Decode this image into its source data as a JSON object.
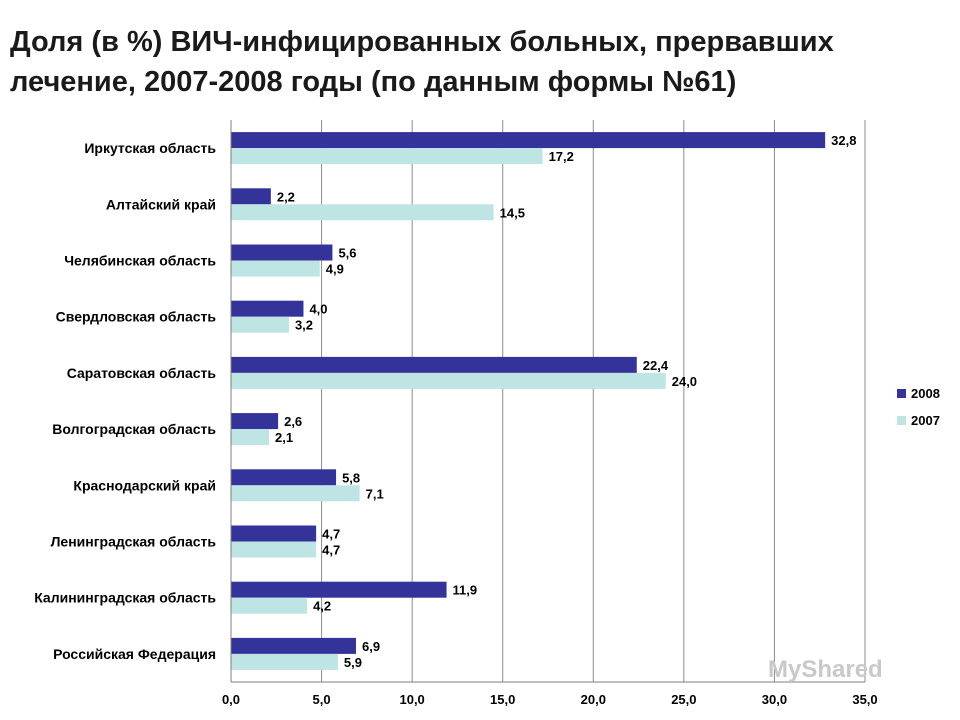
{
  "title": {
    "line1": "Доля (в %) ВИЧ-инфицированных больных, прервавших",
    "line2": "лечение, 2007-2008 годы (по данным формы №61)"
  },
  "watermark": "MyShared",
  "chart_data": {
    "type": "bar",
    "orientation": "horizontal",
    "title": "Доля (в %) ВИЧ-инфицированных больных, прервавших лечение, 2007-2008 годы (по данным формы №61)",
    "categories": [
      "Иркутская область",
      "Алтайский край",
      "Челябинская область",
      "Свердловская область",
      "Саратовская область",
      "Волгоградская область",
      "Краснодарский край",
      "Ленинградская область",
      "Калининградская область",
      "Российская Федерация"
    ],
    "series": [
      {
        "name": "2008",
        "color": "#333399",
        "values": [
          32.8,
          2.2,
          5.6,
          4.0,
          22.4,
          2.6,
          5.8,
          4.7,
          11.9,
          6.9
        ],
        "labels": [
          "32,8",
          "2,2",
          "5,6",
          "4,0",
          "22,4",
          "2,6",
          "5,8",
          "4,7",
          "11,9",
          "6,9"
        ]
      },
      {
        "name": "2007",
        "color": "#bfe4e4",
        "values": [
          17.2,
          14.5,
          4.9,
          3.2,
          24.0,
          2.1,
          7.1,
          4.7,
          4.2,
          5.9
        ],
        "labels": [
          "17,2",
          "14,5",
          "4,9",
          "3,2",
          "24,0",
          "2,1",
          "7,1",
          "4,7",
          "4,2",
          "5,9"
        ]
      }
    ],
    "xlim": [
      0,
      35
    ],
    "xticks": [
      "0,0",
      "5,0",
      "10,0",
      "15,0",
      "20,0",
      "25,0",
      "30,0",
      "35,0"
    ],
    "xlabel": "",
    "ylabel": "",
    "grid": true,
    "legend_position": "right"
  }
}
